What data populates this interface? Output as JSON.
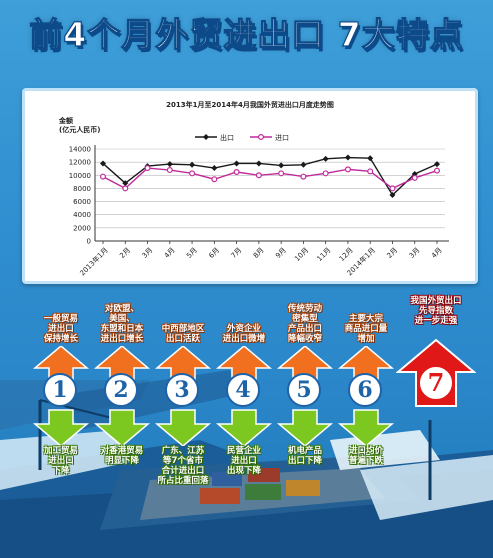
{
  "headline": "前4个月外贸进出口 7大特点",
  "colors": {
    "export": "#1a1a1a",
    "import": "#c2299b",
    "up_arrow": "#f07020",
    "down_arrow": "#7cc820",
    "big_arrow": "#e01818"
  },
  "chart_data": {
    "type": "line",
    "title": "2013年1月至2014年4月我国外贸进出口月度走势图",
    "ylabel": "金额\n(亿元人民币)",
    "xlabel": "",
    "ylim": [
      0,
      14000
    ],
    "yticks": [
      0,
      2000,
      4000,
      6000,
      8000,
      10000,
      12000,
      14000
    ],
    "grid": true,
    "legend_position": "top-center",
    "categories": [
      "2013年1月",
      "2月",
      "3月",
      "4月",
      "5月",
      "6月",
      "7月",
      "8月",
      "9月",
      "10月",
      "11月",
      "12月",
      "2014年1月",
      "2月",
      "3月",
      "4月"
    ],
    "series": [
      {
        "name": "出口",
        "marker": "diamond",
        "values": [
          11800,
          8800,
          11400,
          11700,
          11600,
          11100,
          11800,
          11800,
          11500,
          11600,
          12500,
          12700,
          12600,
          7000,
          10200,
          11700
        ]
      },
      {
        "name": "进口",
        "marker": "circle",
        "values": [
          9800,
          8000,
          11100,
          10800,
          10300,
          9400,
          10500,
          10000,
          10300,
          9800,
          10300,
          10900,
          10600,
          8000,
          9600,
          10700
        ]
      }
    ]
  },
  "features": [
    {
      "number": "1",
      "up_text": "一般贸易\n进出口\n保持增长",
      "down_text": "加工贸易\n进出口\n下降"
    },
    {
      "number": "2",
      "up_text": "对欧盟、\n美国、\n东盟和日本\n进出口增长",
      "down_text": "对香港贸易\n明显下降"
    },
    {
      "number": "3",
      "up_text": "中西部地区\n出口活跃",
      "down_text": "广东、江苏\n等7个省市\n合计进出口\n所占比重回落"
    },
    {
      "number": "4",
      "up_text": "外资企业\n进出口微增",
      "down_text": "民营企业\n进出口\n出现下降"
    },
    {
      "number": "5",
      "up_text": "传统劳动\n密集型\n产品出口\n降幅收窄",
      "down_text": "机电产品\n出口下降"
    },
    {
      "number": "6",
      "up_text": "主要大宗\n商品进口量\n增加",
      "down_text": "进口均价\n普遍下跌"
    }
  ],
  "feature_big": {
    "number": "7",
    "up_text": "我国外贸出口\n先导指数\n进一步走强"
  }
}
